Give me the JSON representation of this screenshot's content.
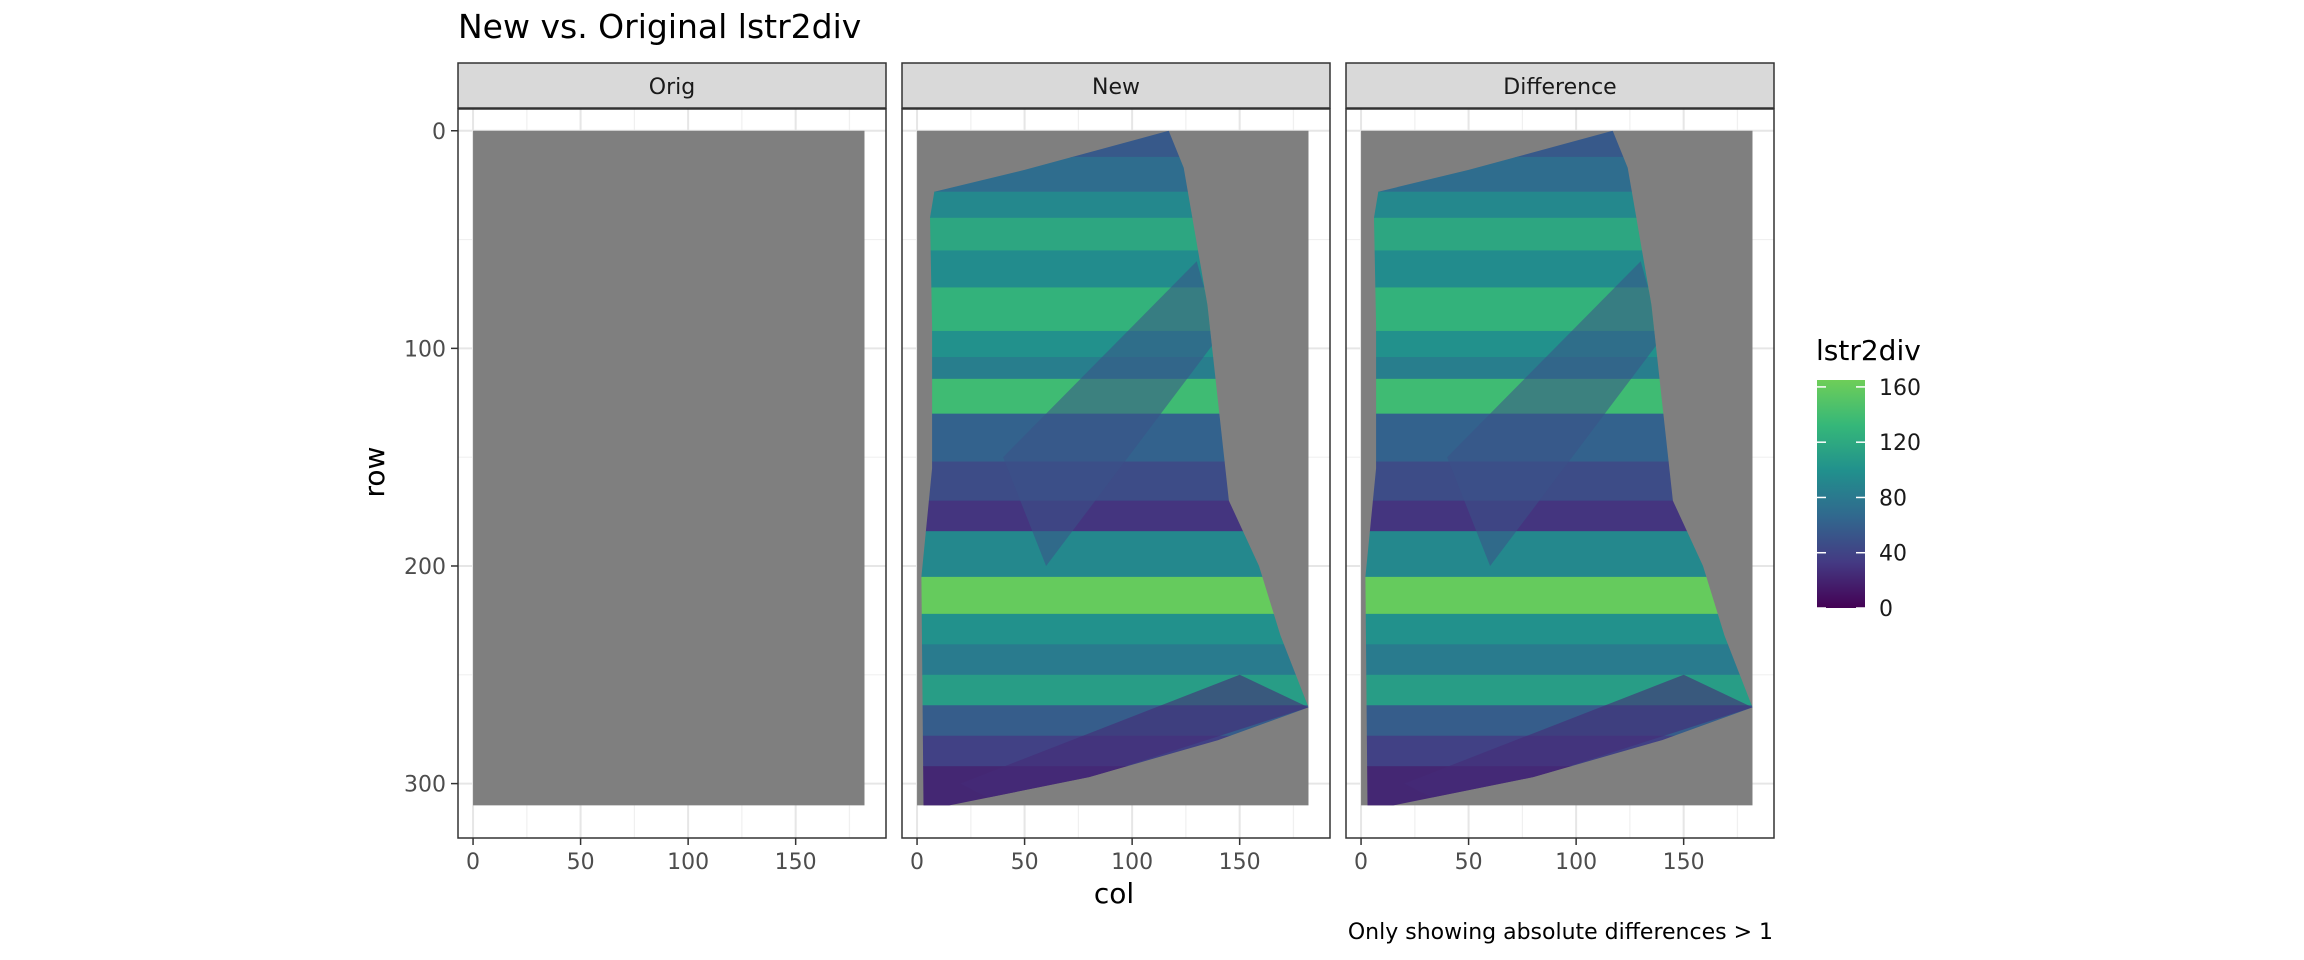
{
  "chart_data": {
    "type": "heatmap",
    "title": "New vs. Original lstr2div",
    "xlabel": "col",
    "ylabel": "row",
    "caption": "Only showing absolute differences > 1",
    "facets": [
      "Orig",
      "New",
      "Difference"
    ],
    "x_ticks": [
      0,
      50,
      100,
      150
    ],
    "y_ticks": [
      0,
      100,
      200,
      300
    ],
    "xlim": [
      -7,
      192
    ],
    "ylim": [
      -10,
      325
    ],
    "y_reversed": true,
    "grid": true,
    "raster_extent": {
      "col": [
        0,
        182
      ],
      "row": [
        0,
        310
      ]
    },
    "background_fill": "#7f7f7f",
    "legend": {
      "title": "lstr2div",
      "position": "right",
      "breaks": [
        0,
        40,
        80,
        120,
        160
      ],
      "limits": [
        0,
        165
      ],
      "colors": [
        "#440154",
        "#443a83",
        "#31688e",
        "#21908d",
        "#35b779",
        "#6ece58"
      ]
    },
    "data_region_polygon": [
      [
        117,
        0
      ],
      [
        124,
        17
      ],
      [
        135,
        80
      ],
      [
        145,
        170
      ],
      [
        159,
        200
      ],
      [
        169,
        232
      ],
      [
        182,
        265
      ],
      [
        140,
        280
      ],
      [
        80,
        297
      ],
      [
        15,
        310
      ],
      [
        3,
        310
      ],
      [
        2,
        205
      ],
      [
        7,
        155
      ],
      [
        7,
        90
      ],
      [
        6,
        40
      ],
      [
        8,
        28
      ],
      [
        50,
        18
      ]
    ],
    "bands": [
      {
        "row": [
          0,
          12
        ],
        "value": 55
      },
      {
        "row": [
          12,
          28
        ],
        "value": 70
      },
      {
        "row": [
          28,
          40
        ],
        "value": 92
      },
      {
        "row": [
          40,
          55
        ],
        "value": 118
      },
      {
        "row": [
          55,
          72
        ],
        "value": 96
      },
      {
        "row": [
          72,
          92
        ],
        "value": 128
      },
      {
        "row": [
          92,
          104
        ],
        "value": 100
      },
      {
        "row": [
          104,
          114
        ],
        "value": 84
      },
      {
        "row": [
          114,
          130
        ],
        "value": 138
      },
      {
        "row": [
          130,
          152
        ],
        "value": 62
      },
      {
        "row": [
          152,
          170
        ],
        "value": 46
      },
      {
        "row": [
          170,
          184
        ],
        "value": 30
      },
      {
        "row": [
          184,
          205
        ],
        "value": 92
      },
      {
        "row": [
          205,
          222
        ],
        "value": 160
      },
      {
        "row": [
          222,
          236
        ],
        "value": 100
      },
      {
        "row": [
          236,
          250
        ],
        "value": 82
      },
      {
        "row": [
          250,
          264
        ],
        "value": 110
      },
      {
        "row": [
          264,
          278
        ],
        "value": 58
      },
      {
        "row": [
          278,
          292
        ],
        "value": 38
      },
      {
        "row": [
          292,
          310
        ],
        "value": 22
      }
    ]
  }
}
